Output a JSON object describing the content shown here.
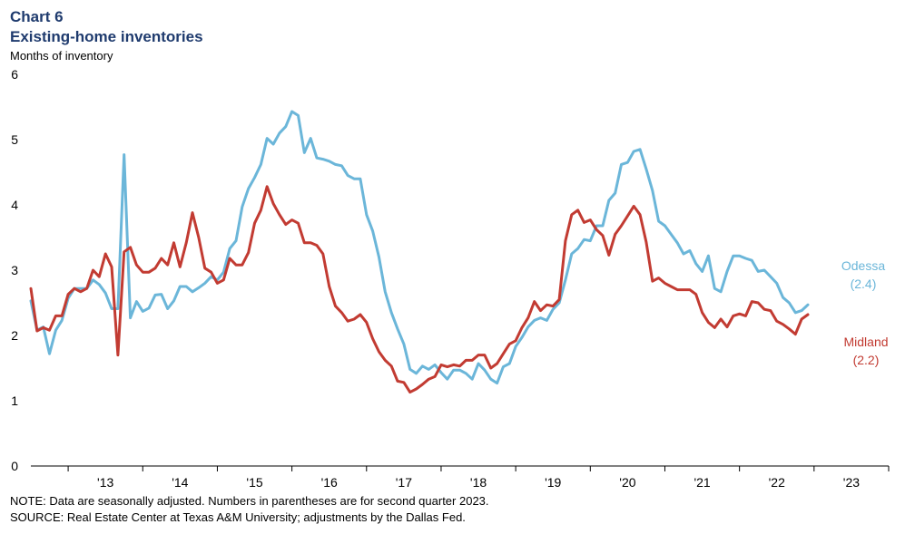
{
  "header": {
    "chart_number": "Chart 6",
    "title": "Existing-home inventories",
    "yaxis_label": "Months of inventory"
  },
  "footer": {
    "note": "NOTE: Data are seasonally adjusted. Numbers in parentheses are for second quarter 2023.",
    "source": "SOURCE: Real Estate Center at Texas A&M University; adjustments by the Dallas Fed."
  },
  "colors": {
    "odessa": "#6bb6d9",
    "midland": "#c23b32"
  },
  "labels": {
    "odessa_name": "Odessa",
    "odessa_value": "(2.4)",
    "midland_name": "Midland",
    "midland_value": "(2.2)"
  },
  "chart_data": {
    "type": "line",
    "title": "Existing-home inventories",
    "ylabel": "Months of inventory",
    "xlabel": "",
    "ylim": [
      0,
      6
    ],
    "yticks": [
      0,
      1,
      2,
      3,
      4,
      5,
      6
    ],
    "xlim": [
      "2012-07",
      "2023-12"
    ],
    "xticks": [
      "'13",
      "'14",
      "'15",
      "'16",
      "'17",
      "'18",
      "'19",
      "'20",
      "'21",
      "'22",
      "'23"
    ],
    "grid": false,
    "legend": "inline-right",
    "x_start": "2012-07",
    "x_frequency": "monthly",
    "series": [
      {
        "name": "Odessa",
        "values": [
          2.53,
          2.08,
          2.13,
          1.72,
          2.08,
          2.23,
          2.57,
          2.72,
          2.72,
          2.72,
          2.85,
          2.78,
          2.65,
          2.41,
          2.41,
          4.77,
          2.27,
          2.52,
          2.37,
          2.42,
          2.62,
          2.63,
          2.41,
          2.53,
          2.75,
          2.75,
          2.67,
          2.73,
          2.8,
          2.9,
          2.85,
          2.97,
          3.33,
          3.45,
          3.97,
          4.25,
          4.42,
          4.62,
          5.02,
          4.93,
          5.1,
          5.2,
          5.43,
          5.37,
          4.8,
          5.02,
          4.72,
          4.7,
          4.67,
          4.62,
          4.6,
          4.45,
          4.4,
          4.4,
          3.85,
          3.6,
          3.2,
          2.67,
          2.35,
          2.1,
          1.87,
          1.48,
          1.42,
          1.53,
          1.48,
          1.55,
          1.43,
          1.33,
          1.47,
          1.47,
          1.42,
          1.33,
          1.57,
          1.47,
          1.33,
          1.27,
          1.52,
          1.57,
          1.83,
          1.97,
          2.13,
          2.23,
          2.27,
          2.23,
          2.4,
          2.5,
          2.85,
          3.25,
          3.33,
          3.47,
          3.45,
          3.68,
          3.68,
          4.07,
          4.18,
          4.62,
          4.65,
          4.82,
          4.85,
          4.55,
          4.22,
          3.75,
          3.68,
          3.55,
          3.42,
          3.25,
          3.3,
          3.1,
          2.98,
          3.22,
          2.72,
          2.67,
          2.98,
          3.22,
          3.22,
          3.18,
          3.15,
          2.98,
          3.0,
          2.9,
          2.8,
          2.58,
          2.5,
          2.35,
          2.38,
          2.47
        ]
      },
      {
        "name": "Midland",
        "values": [
          2.72,
          2.07,
          2.12,
          2.08,
          2.3,
          2.3,
          2.63,
          2.72,
          2.67,
          2.72,
          3.0,
          2.9,
          3.25,
          3.05,
          1.7,
          3.28,
          3.35,
          3.08,
          2.97,
          2.97,
          3.03,
          3.18,
          3.08,
          3.42,
          3.05,
          3.42,
          3.88,
          3.5,
          3.03,
          2.97,
          2.8,
          2.85,
          3.18,
          3.08,
          3.08,
          3.27,
          3.72,
          3.92,
          4.28,
          4.02,
          3.85,
          3.7,
          3.77,
          3.72,
          3.42,
          3.42,
          3.38,
          3.25,
          2.75,
          2.45,
          2.35,
          2.22,
          2.25,
          2.32,
          2.2,
          1.95,
          1.75,
          1.62,
          1.53,
          1.3,
          1.28,
          1.13,
          1.18,
          1.25,
          1.33,
          1.37,
          1.55,
          1.52,
          1.55,
          1.53,
          1.62,
          1.62,
          1.7,
          1.7,
          1.5,
          1.57,
          1.72,
          1.87,
          1.92,
          2.12,
          2.27,
          2.52,
          2.38,
          2.47,
          2.45,
          2.55,
          3.45,
          3.85,
          3.92,
          3.73,
          3.77,
          3.62,
          3.53,
          3.23,
          3.55,
          3.68,
          3.83,
          3.98,
          3.85,
          3.43,
          2.83,
          2.88,
          2.8,
          2.75,
          2.7,
          2.7,
          2.7,
          2.63,
          2.35,
          2.2,
          2.12,
          2.25,
          2.13,
          2.3,
          2.33,
          2.3,
          2.52,
          2.5,
          2.4,
          2.38,
          2.22,
          2.17,
          2.1,
          2.02,
          2.25,
          2.32
        ]
      }
    ]
  }
}
